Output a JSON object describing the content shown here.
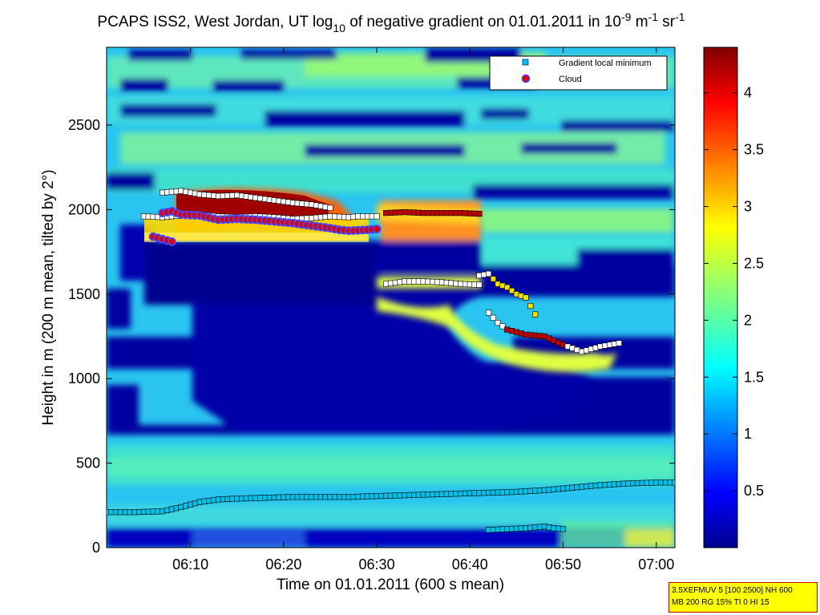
{
  "chart_data": {
    "type": "heatmap",
    "title": {
      "parts": [
        "PCAPS ISS2, West Jordan, UT log",
        "10",
        " of negative gradient on 01.01.2011 in 10",
        "-9",
        " m",
        "-1",
        " sr",
        "-1"
      ]
    },
    "xlabel": "Time on 01.01.2011 (600 s mean)",
    "ylabel": "Height in m (200 m mean, tilted by 2°)",
    "xlim": [
      "06:01",
      "07:02"
    ],
    "ylim": [
      0,
      2960
    ],
    "x_ticks": [
      "06:10",
      "06:20",
      "06:30",
      "06:40",
      "06:50",
      "07:00"
    ],
    "y_ticks": [
      0,
      500,
      1000,
      1500,
      2000,
      2500
    ],
    "colorbar": {
      "colormap": "jet",
      "range": [
        0,
        4.4
      ],
      "ticks": [
        "0.5",
        "1",
        "1.5",
        "2",
        "2.5",
        "3",
        "3.5",
        "4"
      ]
    },
    "legend": {
      "position": "top-right",
      "entries": [
        {
          "label": "Gradient local minimum",
          "marker": "square",
          "color": "#00c0ff"
        },
        {
          "label": "Cloud",
          "marker": "circle",
          "color": "#e00000",
          "edge": "#4040ff"
        }
      ]
    },
    "series": [
      {
        "name": "Gradient local minimum",
        "marker": "square",
        "x": [
          "06:01",
          "06:04",
          "06:07",
          "06:09",
          "06:11",
          "06:13",
          "06:15",
          "06:18",
          "06:21",
          "06:24",
          "06:27",
          "06:30",
          "06:33",
          "06:36",
          "06:39",
          "06:42",
          "06:45",
          "06:48",
          "06:51",
          "06:54",
          "06:57",
          "07:00",
          "07:02"
        ],
        "y": [
          210,
          210,
          215,
          240,
          270,
          285,
          290,
          295,
          300,
          300,
          300,
          305,
          310,
          315,
          320,
          325,
          330,
          340,
          355,
          370,
          380,
          385,
          385
        ]
      },
      {
        "name": "Gradient local minimum",
        "marker": "square",
        "x": [
          "06:42",
          "06:44",
          "06:46",
          "06:48",
          "06:49",
          "06:50"
        ],
        "y": [
          105,
          110,
          115,
          125,
          115,
          110
        ]
      },
      {
        "name": "Gradient local minimum",
        "marker": "square",
        "x": [
          "06:05",
          "06:07",
          "06:09",
          "06:11",
          "06:13",
          "06:15",
          "06:17",
          "06:19",
          "06:21",
          "06:23",
          "06:25",
          "06:27",
          "06:28",
          "06:30"
        ],
        "y": [
          1960,
          1955,
          1965,
          1970,
          1960,
          1955,
          1960,
          1955,
          1945,
          1950,
          1960,
          1955,
          1960,
          1960
        ]
      },
      {
        "name": "Gradient local minimum",
        "marker": "square",
        "x": [
          "06:07",
          "06:09",
          "06:11",
          "06:13",
          "06:15",
          "06:17",
          "06:19",
          "06:21",
          "06:23",
          "06:25"
        ],
        "y": [
          2100,
          2110,
          2090,
          2080,
          2085,
          2070,
          2055,
          2040,
          2030,
          2010
        ]
      },
      {
        "name": "Gradient local minimum",
        "marker": "square",
        "x": [
          "06:31",
          "06:33",
          "06:35",
          "06:37",
          "06:39",
          "06:41"
        ],
        "y": [
          1980,
          1985,
          1980,
          1980,
          1980,
          1975
        ]
      },
      {
        "name": "Gradient local minimum",
        "marker": "square",
        "x": [
          "06:31",
          "06:33",
          "06:35",
          "06:37",
          "06:39",
          "06:41"
        ],
        "y": [
          1560,
          1575,
          1575,
          1570,
          1560,
          1555
        ]
      },
      {
        "name": "Gradient local minimum",
        "marker": "square",
        "x": [
          "06:41",
          "06:42",
          "06:43",
          "06:44",
          "06:45",
          "06:46",
          "06:47"
        ],
        "y": [
          1610,
          1620,
          1560,
          1540,
          1500,
          1480,
          1380
        ]
      },
      {
        "name": "Gradient local minimum",
        "marker": "square",
        "x": [
          "06:42",
          "06:43",
          "06:44",
          "06:46",
          "06:48",
          "06:50",
          "06:52",
          "06:54",
          "06:56"
        ],
        "y": [
          1390,
          1330,
          1290,
          1260,
          1250,
          1200,
          1160,
          1190,
          1210
        ]
      },
      {
        "name": "Cloud",
        "marker": "circle",
        "x": [
          "06:07",
          "06:08",
          "06:09",
          "06:11",
          "06:13",
          "06:15",
          "06:17",
          "06:19",
          "06:21",
          "06:23",
          "06:25",
          "06:26",
          "06:27",
          "06:29",
          "06:30"
        ],
        "y": [
          1980,
          1990,
          1970,
          1965,
          1940,
          1945,
          1940,
          1930,
          1920,
          1905,
          1890,
          1880,
          1875,
          1880,
          1885
        ]
      },
      {
        "name": "Cloud",
        "marker": "circle",
        "x": [
          "06:06",
          "06:07",
          "06:08"
        ],
        "y": [
          1840,
          1825,
          1810
        ]
      }
    ],
    "note_lines": [
      "3.5XEFMUV 5 [100 2500] NH 600",
      "MB 200 RG 15% TI 0 HI 15"
    ]
  }
}
